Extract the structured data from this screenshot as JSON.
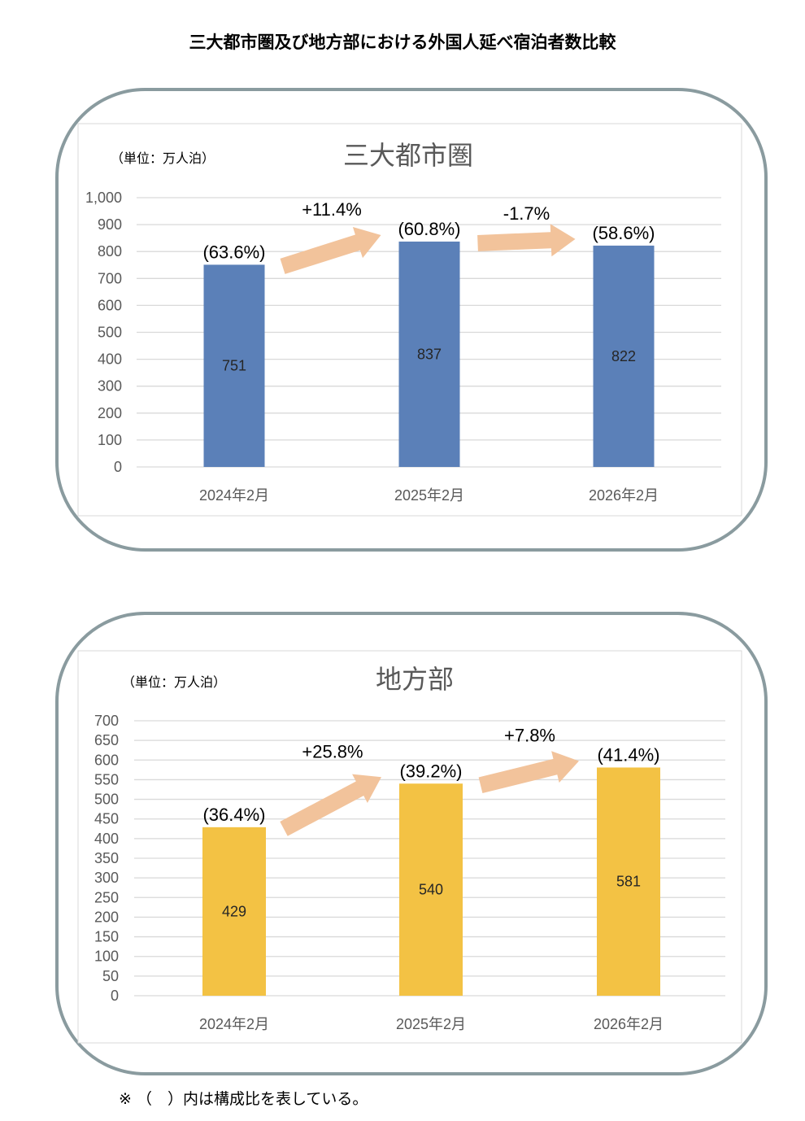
{
  "page_title": "三大都市圏及び地方部における外国人延べ宿泊者数比較",
  "footnote": "※ （　）内は構成比を表している。",
  "chart_data": [
    {
      "type": "bar",
      "title": "三大都市圏",
      "unit_label": "（単位：万人泊）",
      "categories": [
        "2024年2月",
        "2025年2月",
        "2026年2月"
      ],
      "values": [
        751,
        837,
        822
      ],
      "value_labels": [
        "751",
        "837",
        "822"
      ],
      "share_labels": [
        "(63.6%)",
        "(60.8%)",
        "(58.6%)"
      ],
      "change_labels": [
        "+11.4%",
        "-1.7%"
      ],
      "ylim": [
        0,
        1000
      ],
      "y_ticks": [
        0,
        100,
        200,
        300,
        400,
        500,
        600,
        700,
        800,
        900,
        1000
      ],
      "y_tick_labels": [
        "0",
        "100",
        "200",
        "300",
        "400",
        "500",
        "600",
        "700",
        "800",
        "900",
        "1,000"
      ],
      "bar_color": "#5b80b8",
      "grid": true
    },
    {
      "type": "bar",
      "title": "地方部",
      "unit_label": "（単位：万人泊）",
      "categories": [
        "2024年2月",
        "2025年2月",
        "2026年2月"
      ],
      "values": [
        429,
        540,
        581
      ],
      "value_labels": [
        "429",
        "540",
        "581"
      ],
      "share_labels": [
        "(36.4%)",
        "(39.2%)",
        "(41.4%)"
      ],
      "change_labels": [
        "+25.8%",
        "+7.8%"
      ],
      "ylim": [
        0,
        700
      ],
      "y_ticks": [
        0,
        50,
        100,
        150,
        200,
        250,
        300,
        350,
        400,
        450,
        500,
        550,
        600,
        650,
        700
      ],
      "y_tick_labels": [
        "0",
        "50",
        "100",
        "150",
        "200",
        "250",
        "300",
        "350",
        "400",
        "450",
        "500",
        "550",
        "600",
        "650",
        "700"
      ],
      "bar_color": "#f3c244",
      "grid": true
    }
  ],
  "colors": {
    "arrow": "#f2c39b",
    "gridline": "#d9d9d9",
    "panel_border": "#8a9b9f"
  }
}
